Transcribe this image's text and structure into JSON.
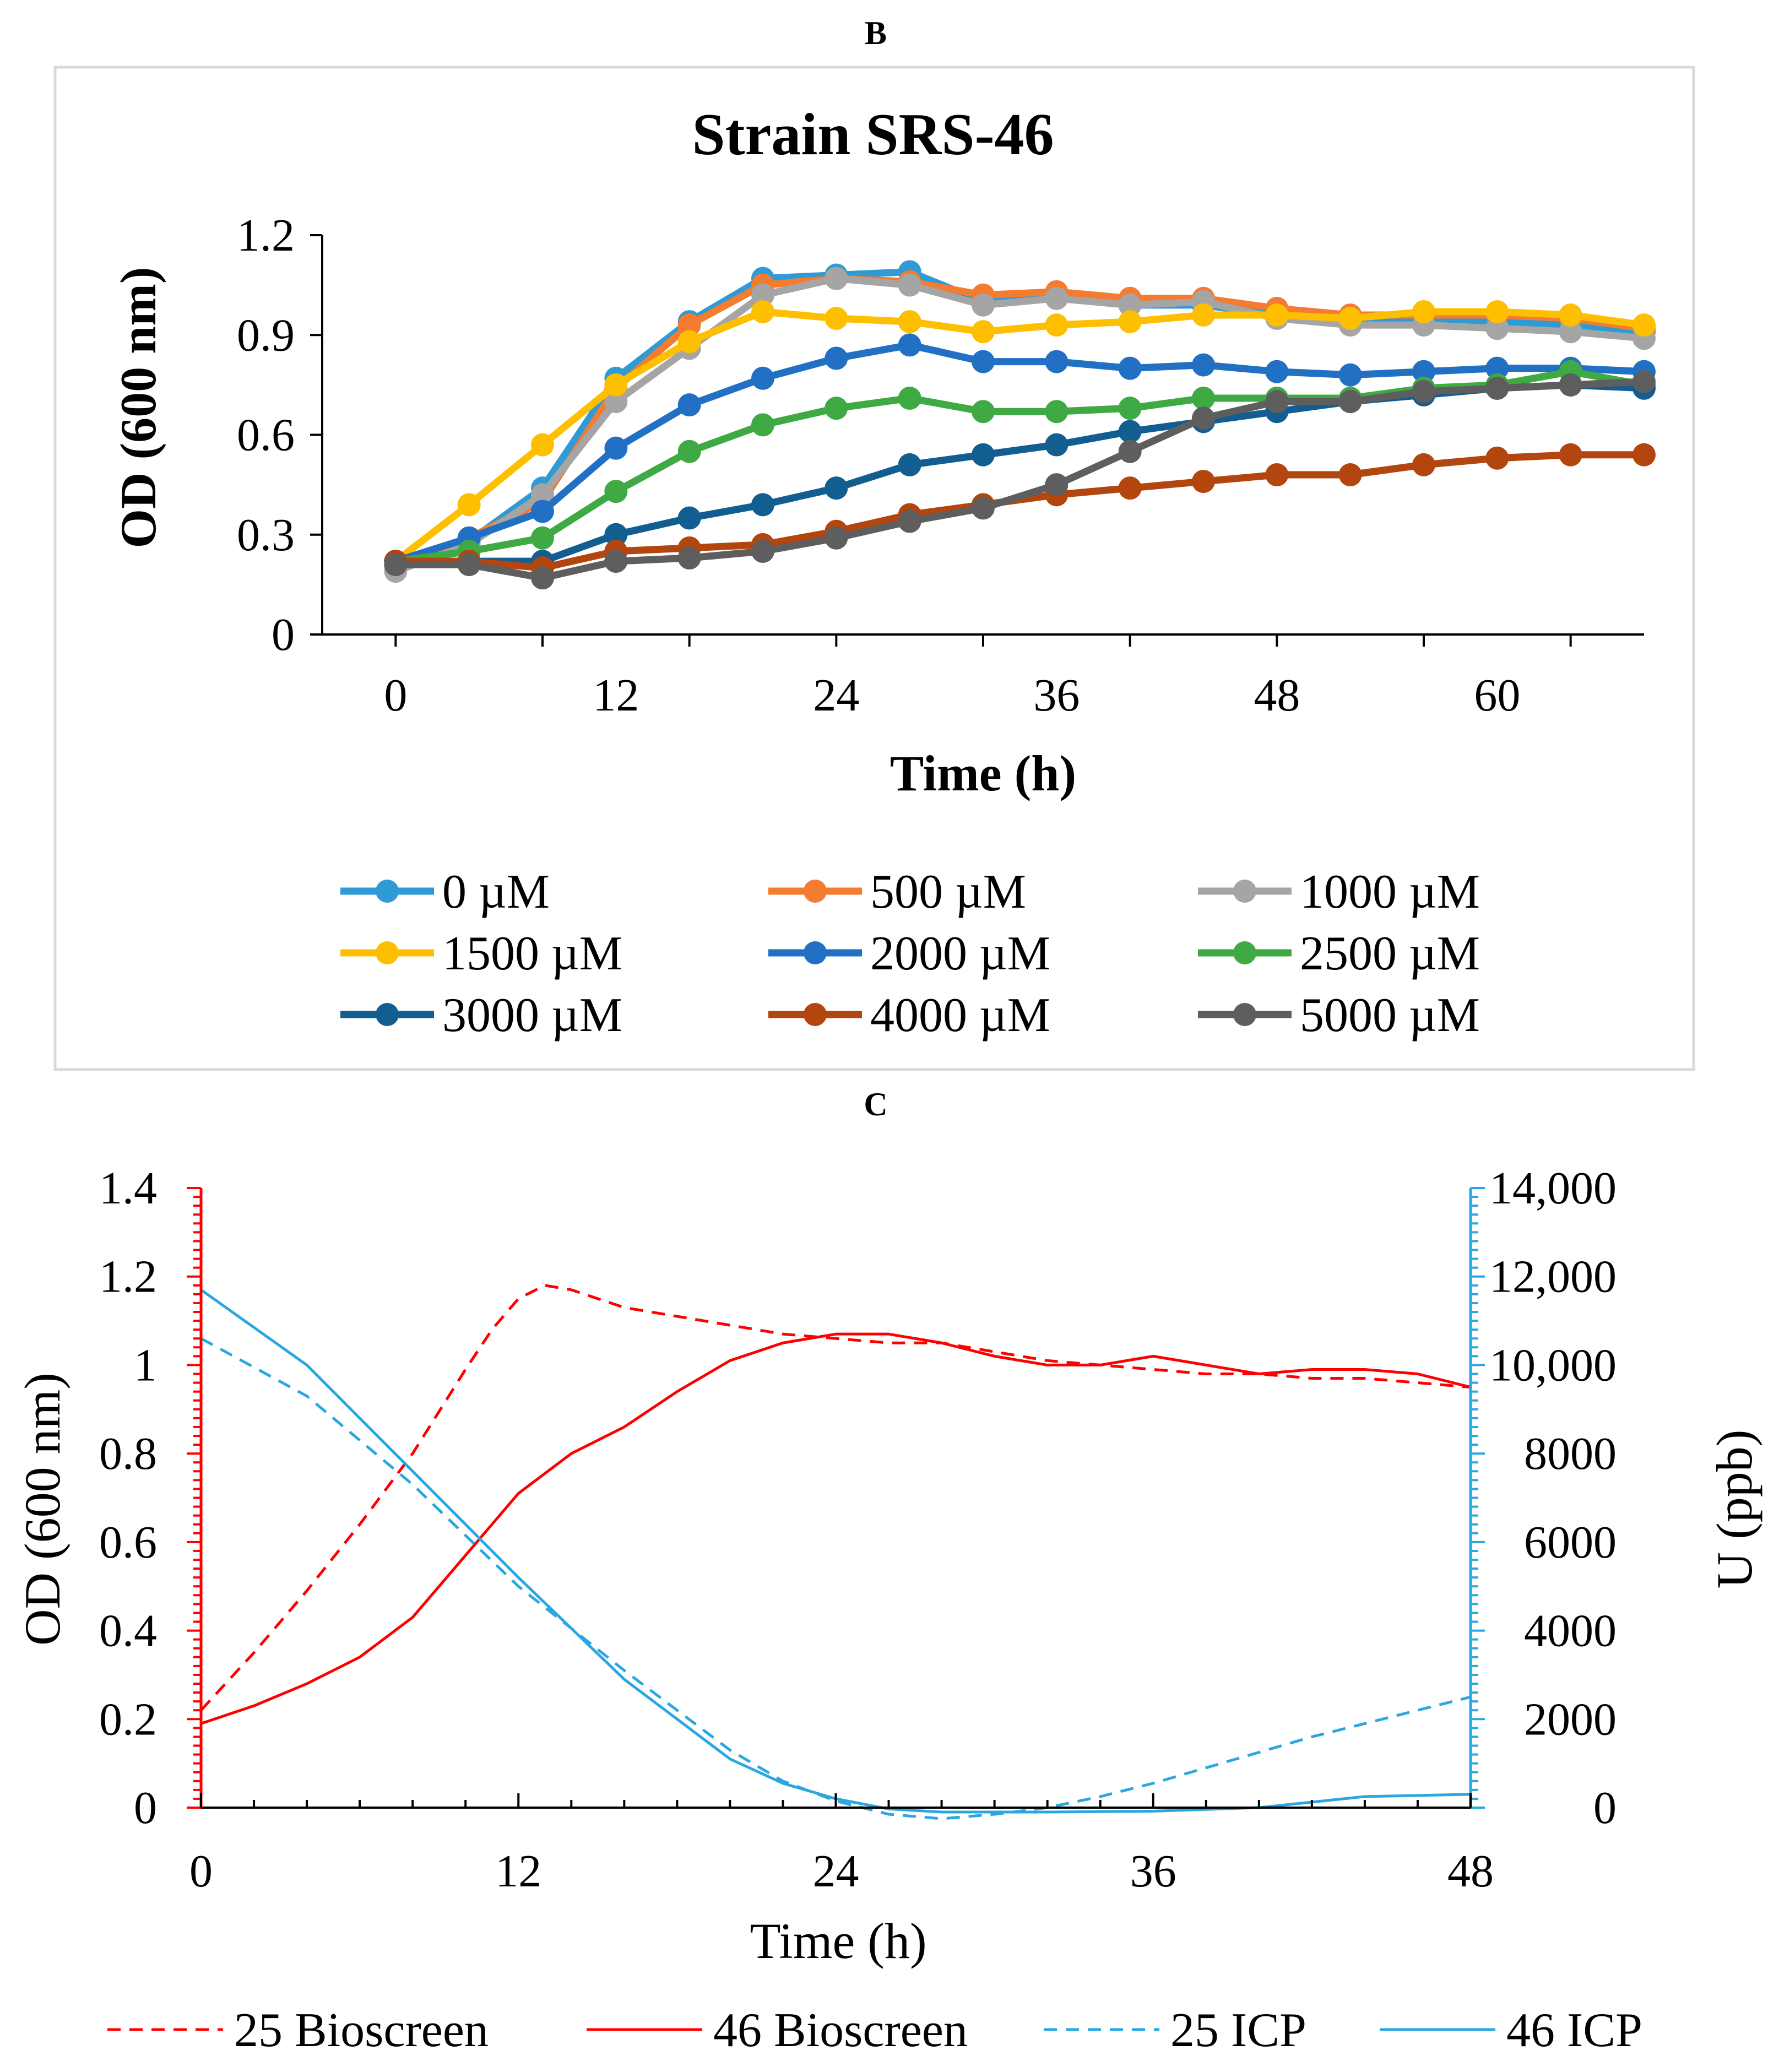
{
  "panels": {
    "b_label": "B",
    "c_label": "C"
  },
  "colors": {
    "s0": "#2E9BD6",
    "s500": "#F47C30",
    "s1000": "#A5A5A5",
    "s1500": "#FDBF00",
    "s2000": "#2170C4",
    "s2500": "#3FAA44",
    "s3000": "#125E91",
    "s4000": "#B2460E",
    "s5000": "#5E5E5E",
    "red": "#FF0000",
    "blue": "#2AA7E0",
    "frame": "#D9D9D9",
    "axis": "#000000"
  },
  "chart_data": [
    {
      "type": "line",
      "title": "Strain SRS-46",
      "xlabel": "Time (h)",
      "ylabel": "OD (600 nm)",
      "xlim": [
        -4,
        68
      ],
      "ylim": [
        0,
        1.2
      ],
      "xticks": [
        "0",
        "12",
        "24",
        "36",
        "48",
        "60"
      ],
      "yticks": [
        "0",
        "0.3",
        "0.6",
        "0.9",
        "1.2"
      ],
      "grid": false,
      "legend_position": "bottom",
      "x": [
        0,
        4,
        8,
        12,
        16,
        20,
        24,
        28,
        32,
        36,
        40,
        44,
        48,
        52,
        56,
        60,
        64,
        68
      ],
      "series": [
        {
          "name": "0 µM",
          "color_key": "s0",
          "values": [
            0.21,
            0.28,
            0.44,
            0.77,
            0.94,
            1.07,
            1.08,
            1.09,
            1.0,
            1.02,
            0.99,
            0.99,
            0.96,
            0.95,
            0.95,
            0.94,
            0.93,
            0.91
          ]
        },
        {
          "name": "500 µM",
          "color_key": "s500",
          "values": [
            0.21,
            0.29,
            0.4,
            0.74,
            0.93,
            1.05,
            1.07,
            1.06,
            1.02,
            1.03,
            1.01,
            1.01,
            0.98,
            0.96,
            0.96,
            0.96,
            0.95,
            0.92
          ]
        },
        {
          "name": "1000 µM",
          "color_key": "s1000",
          "values": [
            0.19,
            0.27,
            0.42,
            0.7,
            0.86,
            1.02,
            1.07,
            1.05,
            0.99,
            1.01,
            0.99,
            1.0,
            0.95,
            0.93,
            0.93,
            0.92,
            0.91,
            0.89
          ]
        },
        {
          "name": "1500 µM",
          "color_key": "s1500",
          "values": [
            0.22,
            0.39,
            0.57,
            0.75,
            0.88,
            0.97,
            0.95,
            0.94,
            0.91,
            0.93,
            0.94,
            0.96,
            0.96,
            0.95,
            0.97,
            0.97,
            0.96,
            0.93
          ]
        },
        {
          "name": "2000 µM",
          "color_key": "s2000",
          "values": [
            0.22,
            0.29,
            0.37,
            0.56,
            0.69,
            0.77,
            0.83,
            0.87,
            0.82,
            0.82,
            0.8,
            0.81,
            0.79,
            0.78,
            0.79,
            0.8,
            0.8,
            0.79
          ]
        },
        {
          "name": "2500 µM",
          "color_key": "s2500",
          "values": [
            0.22,
            0.25,
            0.29,
            0.43,
            0.55,
            0.63,
            0.68,
            0.71,
            0.67,
            0.67,
            0.68,
            0.71,
            0.71,
            0.71,
            0.74,
            0.75,
            0.79,
            0.75
          ]
        },
        {
          "name": "3000 µM",
          "color_key": "s3000",
          "values": [
            0.22,
            0.22,
            0.22,
            0.3,
            0.35,
            0.39,
            0.44,
            0.51,
            0.54,
            0.57,
            0.61,
            0.64,
            0.67,
            0.7,
            0.72,
            0.74,
            0.75,
            0.74
          ]
        },
        {
          "name": "4000 µM",
          "color_key": "s4000",
          "values": [
            0.22,
            0.22,
            0.2,
            0.25,
            0.26,
            0.27,
            0.31,
            0.36,
            0.39,
            0.42,
            0.44,
            0.46,
            0.48,
            0.48,
            0.51,
            0.53,
            0.54,
            0.54
          ]
        },
        {
          "name": "5000 µM",
          "color_key": "s5000",
          "values": [
            0.21,
            0.21,
            0.17,
            0.22,
            0.23,
            0.25,
            0.29,
            0.34,
            0.38,
            0.45,
            0.55,
            0.65,
            0.7,
            0.7,
            0.73,
            0.74,
            0.75,
            0.76
          ]
        }
      ]
    },
    {
      "type": "line",
      "xlabel": "Time (h)",
      "ylabel": "OD (600 nm)",
      "y2label": "U (ppb)",
      "xlim": [
        0,
        48
      ],
      "ylim": [
        0,
        1.4
      ],
      "y2lim": [
        0,
        14000
      ],
      "xticks": [
        "0",
        "12",
        "24",
        "36",
        "48"
      ],
      "yticks": [
        "0",
        "0.2",
        "0.4",
        "0.6",
        "0.8",
        "1",
        "1.2",
        "1.4"
      ],
      "y2ticks": [
        "0",
        "2000",
        "4000",
        "6000",
        "8000",
        "10,000",
        "12,000",
        "14,000"
      ],
      "grid": false,
      "legend_position": "bottom",
      "series": [
        {
          "name": "25 Bioscreen",
          "axis": "left",
          "color_key": "red",
          "dashed": true,
          "x": [
            0,
            2,
            4,
            6,
            8,
            10,
            11,
            12,
            13,
            14,
            16,
            18,
            20,
            22,
            24,
            26,
            28,
            30,
            32,
            34,
            36,
            38,
            40,
            42,
            44,
            46,
            48
          ],
          "values": [
            0.22,
            0.35,
            0.49,
            0.64,
            0.8,
            0.99,
            1.08,
            1.15,
            1.18,
            1.17,
            1.13,
            1.11,
            1.09,
            1.07,
            1.06,
            1.05,
            1.05,
            1.03,
            1.01,
            1.0,
            0.99,
            0.98,
            0.98,
            0.97,
            0.97,
            0.96,
            0.95
          ]
        },
        {
          "name": "46 Bioscreen",
          "axis": "left",
          "color_key": "red",
          "dashed": false,
          "x": [
            0,
            2,
            4,
            6,
            8,
            10,
            12,
            14,
            16,
            18,
            20,
            22,
            24,
            26,
            28,
            30,
            32,
            34,
            36,
            38,
            40,
            42,
            44,
            46,
            48
          ],
          "values": [
            0.19,
            0.23,
            0.28,
            0.34,
            0.43,
            0.57,
            0.71,
            0.8,
            0.86,
            0.94,
            1.01,
            1.05,
            1.07,
            1.07,
            1.05,
            1.02,
            1.0,
            1.0,
            1.02,
            1.0,
            0.98,
            0.99,
            0.99,
            0.98,
            0.95
          ]
        },
        {
          "name": "25 ICP",
          "axis": "right",
          "color_key": "blue",
          "dashed": true,
          "x": [
            0,
            4,
            8,
            12,
            16,
            20,
            22,
            24,
            26,
            28,
            30,
            32,
            34,
            36,
            38,
            40,
            42,
            44,
            46,
            48
          ],
          "values": [
            10600,
            9300,
            7300,
            5000,
            3100,
            1300,
            600,
            150,
            -150,
            -250,
            -150,
            0,
            250,
            550,
            900,
            1250,
            1600,
            1900,
            2200,
            2500
          ]
        },
        {
          "name": "46 ICP",
          "axis": "right",
          "color_key": "blue",
          "dashed": false,
          "x": [
            0,
            4,
            8,
            12,
            16,
            20,
            22,
            24,
            26,
            28,
            32,
            36,
            40,
            44,
            48
          ],
          "values": [
            11700,
            10000,
            7600,
            5200,
            2900,
            1100,
            550,
            200,
            -30,
            -100,
            -100,
            -80,
            0,
            250,
            300
          ]
        }
      ]
    }
  ]
}
